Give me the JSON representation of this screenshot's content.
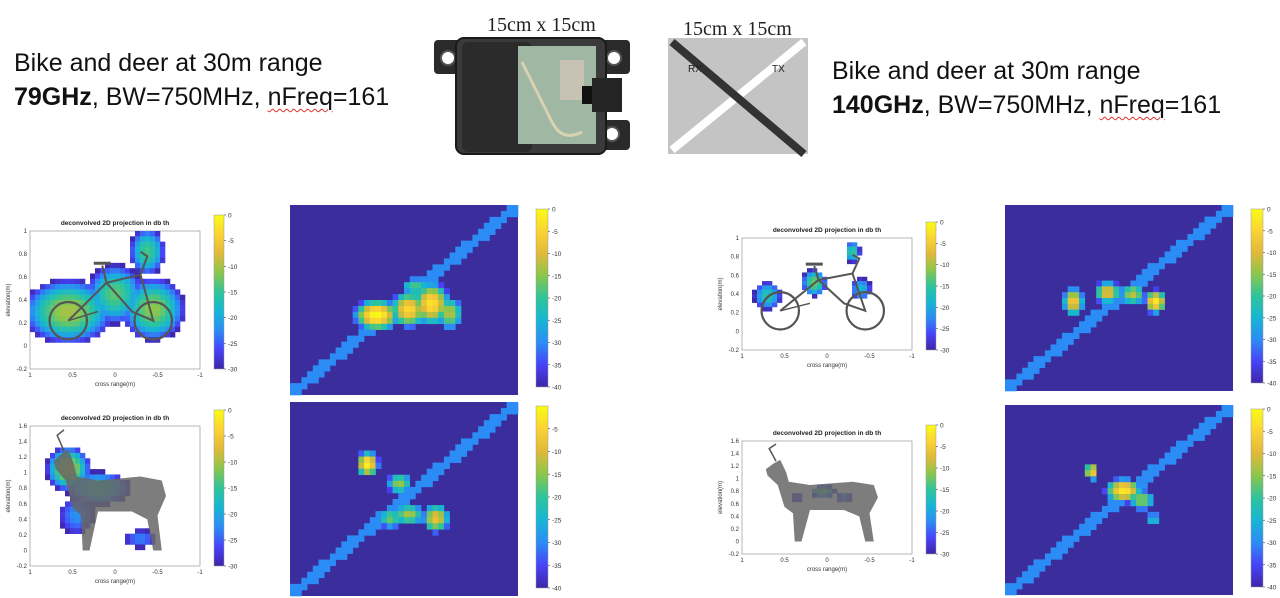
{
  "header": {
    "left": {
      "line1": "Bike and deer at 30m range",
      "freq": "79GHz",
      "bw": ", BW=750MHz, ",
      "nfreq_label": "nFreq",
      "nfreq_value": "=161"
    },
    "right": {
      "line1": "Bike and deer at 30m range",
      "freq": "140GHz",
      "bw": ", BW=750MHz, ",
      "nfreq_label": "nFreq",
      "nfreq_value": "=161"
    },
    "device_size": "15cm x 15cm",
    "antenna_size": "15cm x 15cm",
    "antenna_rx": "RX",
    "antenna_tx": "TX"
  },
  "colors": {
    "background_heatmap": "#3b2e9c",
    "colormap": [
      "#3e26a8",
      "#4743f8",
      "#2c8cf5",
      "#17b6d4",
      "#2ec49b",
      "#8bc64c",
      "#e0b93a",
      "#fbd335",
      "#f9fb15"
    ],
    "silhouette": "#666666"
  },
  "chart_data": [
    {
      "type": "heatmap",
      "title": "deconvolved 2D projection in db th",
      "xlabel": "cross range(m)",
      "ylabel": "elevation(m)",
      "xlim": [
        1,
        -1
      ],
      "ylim": [
        -0.2,
        1
      ],
      "xticks": [
        "1",
        "0.5",
        "0",
        "-0.5",
        "-1"
      ],
      "yticks": [
        "1",
        "0.8",
        "0.6",
        "0.4",
        "0.2",
        "0",
        "-0.2"
      ],
      "colorbar": {
        "range": [
          -30,
          0
        ],
        "ticks": [
          "0",
          "-5",
          "-10",
          "-15",
          "-20",
          "-25",
          "-30"
        ]
      },
      "overlay": "bike",
      "blobs": [
        {
          "x": 0.55,
          "y": 0.3,
          "sx": 0.42,
          "sy": 0.22,
          "v": -10
        },
        {
          "x": -0.45,
          "y": 0.32,
          "sx": 0.3,
          "sy": 0.22,
          "v": -11
        },
        {
          "x": 0.0,
          "y": 0.45,
          "sx": 0.28,
          "sy": 0.22,
          "v": -13
        },
        {
          "x": -0.38,
          "y": 0.82,
          "sx": 0.18,
          "sy": 0.18,
          "v": -14
        }
      ]
    },
    {
      "type": "heatmap",
      "colorbar": {
        "range": [
          -40,
          0
        ],
        "ticks": [
          "0",
          "-5",
          "-10",
          "-15",
          "-20",
          "-25",
          "-30",
          "-35",
          "-40"
        ]
      },
      "diagonal": true,
      "blobs": [
        {
          "x": 0.38,
          "y": 0.58,
          "sx": 0.06,
          "sy": 0.05,
          "v": 0
        },
        {
          "x": 0.52,
          "y": 0.55,
          "sx": 0.05,
          "sy": 0.06,
          "v": -4
        },
        {
          "x": 0.62,
          "y": 0.52,
          "sx": 0.05,
          "sy": 0.07,
          "v": -3
        },
        {
          "x": 0.7,
          "y": 0.57,
          "sx": 0.04,
          "sy": 0.06,
          "v": -12
        },
        {
          "x": 0.55,
          "y": 0.43,
          "sx": 0.05,
          "sy": 0.04,
          "v": -18
        }
      ]
    },
    {
      "type": "heatmap",
      "title": "deconvolved 2D projection in db th",
      "xlabel": "cross range(m)",
      "ylabel": "elevation(m)",
      "xlim": [
        1,
        -1
      ],
      "ylim": [
        -0.2,
        1.6
      ],
      "xticks": [
        "1",
        "0.5",
        "0",
        "-0.5",
        "-1"
      ],
      "yticks": [
        "1.6",
        "1.4",
        "1.2",
        "1",
        "0.8",
        "0.6",
        "0.4",
        "0.2",
        "0",
        "-0.2"
      ],
      "colorbar": {
        "range": [
          -30,
          0
        ],
        "ticks": [
          "0",
          "-5",
          "-10",
          "-15",
          "-20",
          "-25",
          "-30"
        ]
      },
      "overlay": "deer",
      "blobs": [
        {
          "x": 0.55,
          "y": 1.05,
          "sx": 0.2,
          "sy": 0.22,
          "v": -9
        },
        {
          "x": 0.2,
          "y": 0.8,
          "sx": 0.35,
          "sy": 0.2,
          "v": -16
        },
        {
          "x": 0.45,
          "y": 0.45,
          "sx": 0.25,
          "sy": 0.3,
          "v": -22
        },
        {
          "x": -0.3,
          "y": 0.15,
          "sx": 0.25,
          "sy": 0.15,
          "v": -23
        }
      ]
    },
    {
      "type": "heatmap",
      "colorbar": {
        "range": [
          -40,
          0
        ],
        "ticks": [
          "-5",
          "-10",
          "-15",
          "-20",
          "-25",
          "-30",
          "-35",
          "-40"
        ]
      },
      "diagonal": true,
      "blobs": [
        {
          "x": 0.34,
          "y": 0.32,
          "sx": 0.03,
          "sy": 0.04,
          "v": -1
        },
        {
          "x": 0.48,
          "y": 0.42,
          "sx": 0.04,
          "sy": 0.04,
          "v": -14
        },
        {
          "x": 0.52,
          "y": 0.58,
          "sx": 0.05,
          "sy": 0.04,
          "v": -13
        },
        {
          "x": 0.64,
          "y": 0.6,
          "sx": 0.04,
          "sy": 0.05,
          "v": -8
        },
        {
          "x": 0.44,
          "y": 0.6,
          "sx": 0.04,
          "sy": 0.04,
          "v": -16
        }
      ]
    },
    {
      "type": "heatmap",
      "title": "deconvolved 2D projection in db th",
      "xlabel": "cross range(m)",
      "ylabel": "elevation(m)",
      "xlim": [
        1,
        -1
      ],
      "ylim": [
        -0.2,
        1
      ],
      "xticks": [
        "1",
        "0.5",
        "0",
        "-0.5",
        "-1"
      ],
      "yticks": [
        "1",
        "0.8",
        "0.6",
        "0.4",
        "0.2",
        "0",
        "-0.2"
      ],
      "colorbar": {
        "range": [
          -30,
          0
        ],
        "ticks": [
          "0",
          "-5",
          "-10",
          "-15",
          "-20",
          "-25",
          "-30"
        ]
      },
      "overlay": "bike",
      "blobs": [
        {
          "x": 0.7,
          "y": 0.38,
          "sx": 0.15,
          "sy": 0.14,
          "v": -16
        },
        {
          "x": 0.15,
          "y": 0.52,
          "sx": 0.12,
          "sy": 0.12,
          "v": -12
        },
        {
          "x": -0.3,
          "y": 0.85,
          "sx": 0.08,
          "sy": 0.1,
          "v": -14
        },
        {
          "x": -0.4,
          "y": 0.45,
          "sx": 0.12,
          "sy": 0.12,
          "v": -18
        }
      ]
    },
    {
      "type": "heatmap",
      "colorbar": {
        "range": [
          -40,
          0
        ],
        "ticks": [
          "0",
          "-5",
          "-10",
          "-15",
          "-20",
          "-25",
          "-30",
          "-35",
          "-40"
        ]
      },
      "diagonal": true,
      "blobs": [
        {
          "x": 0.3,
          "y": 0.52,
          "sx": 0.03,
          "sy": 0.05,
          "v": -6
        },
        {
          "x": 0.45,
          "y": 0.47,
          "sx": 0.04,
          "sy": 0.04,
          "v": -8
        },
        {
          "x": 0.56,
          "y": 0.48,
          "sx": 0.04,
          "sy": 0.04,
          "v": -12
        },
        {
          "x": 0.66,
          "y": 0.52,
          "sx": 0.03,
          "sy": 0.04,
          "v": -2
        }
      ]
    },
    {
      "type": "heatmap",
      "title": "deconvolved 2D projection in db th",
      "xlabel": "cross range(m)",
      "ylabel": "elevation(m)",
      "xlim": [
        1,
        -1
      ],
      "ylim": [
        -0.2,
        1.6
      ],
      "xticks": [
        "1",
        "0.5",
        "0",
        "-0.5",
        "-1"
      ],
      "yticks": [
        "1.6",
        "1.4",
        "1.2",
        "1",
        "0.8",
        "0.6",
        "0.4",
        "0.2",
        "0",
        "-0.2"
      ],
      "colorbar": {
        "range": [
          -30,
          0
        ],
        "ticks": [
          "0",
          "-5",
          "-10",
          "-15",
          "-20",
          "-25",
          "-30"
        ]
      },
      "overlay": "deer",
      "blobs": [
        {
          "x": 0.05,
          "y": 0.8,
          "sx": 0.12,
          "sy": 0.08,
          "v": -13
        },
        {
          "x": -0.2,
          "y": 0.7,
          "sx": 0.1,
          "sy": 0.07,
          "v": -20
        },
        {
          "x": 0.35,
          "y": 0.7,
          "sx": 0.1,
          "sy": 0.08,
          "v": -24
        }
      ]
    },
    {
      "type": "heatmap",
      "colorbar": {
        "range": [
          -40,
          0
        ],
        "ticks": [
          "0",
          "-5",
          "-10",
          "-15",
          "-20",
          "-25",
          "-30",
          "-35",
          "-40"
        ]
      },
      "diagonal": true,
      "blobs": [
        {
          "x": 0.38,
          "y": 0.35,
          "sx": 0.02,
          "sy": 0.03,
          "v": -5
        },
        {
          "x": 0.52,
          "y": 0.45,
          "sx": 0.05,
          "sy": 0.04,
          "v": -2
        },
        {
          "x": 0.6,
          "y": 0.5,
          "sx": 0.04,
          "sy": 0.04,
          "v": -14
        },
        {
          "x": 0.65,
          "y": 0.6,
          "sx": 0.02,
          "sy": 0.03,
          "v": -20
        }
      ]
    }
  ]
}
